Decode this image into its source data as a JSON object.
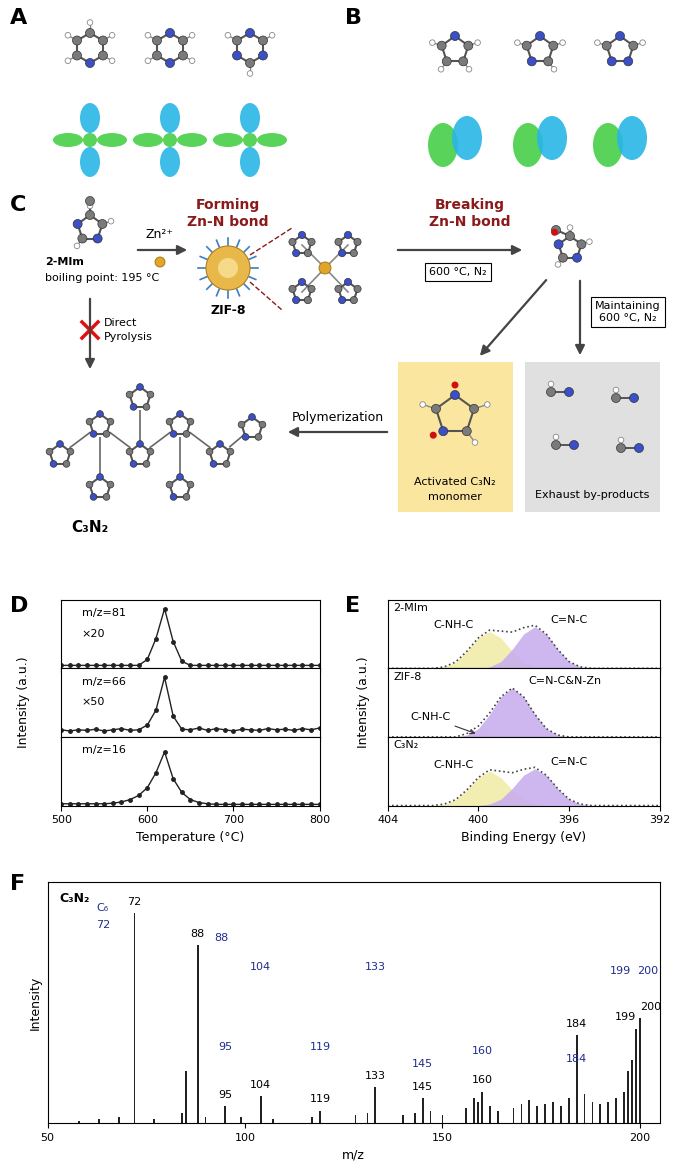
{
  "panel_labels": [
    "A",
    "B",
    "C",
    "D",
    "E",
    "F"
  ],
  "diagram": {
    "precursor": {
      "name": "2-MIm",
      "note": "boiling point: 195 °C"
    },
    "metal": "Zn²⁺",
    "step1": [
      "Forming",
      "Zn-N bond"
    ],
    "framework": "ZIF-8",
    "step2": [
      "Breaking",
      "Zn-N bond"
    ],
    "condition": "600 °C, N₂",
    "step3": [
      "Maintaining",
      "600 °C, N₂"
    ],
    "blocked_route": [
      "Direct",
      "Pyrolysis"
    ],
    "monomer": [
      "Activated C₃N₂",
      "monomer"
    ],
    "byproducts": "Exhaust by-products",
    "step4": "Polymerization",
    "product": "C₃N₂"
  },
  "chart_data": [
    {
      "type": "line",
      "xlabel": "Temperature (°C)",
      "ylabel": "Intensity (a.u.)",
      "x": [
        500,
        510,
        520,
        530,
        540,
        550,
        560,
        570,
        580,
        590,
        600,
        610,
        620,
        630,
        640,
        650,
        660,
        670,
        680,
        690,
        700,
        710,
        720,
        730,
        740,
        750,
        760,
        770,
        780,
        790,
        800
      ],
      "xlim": [
        500,
        800
      ],
      "xticks": [
        500,
        600,
        700,
        800
      ],
      "ylim": [
        0,
        1.15
      ],
      "tick_labels": "x",
      "grid": false,
      "marker": "circle",
      "line_style": "solid",
      "series": [
        {
          "name": "m/z=81",
          "annotation": "×20",
          "color": "#222222",
          "values": [
            0.05,
            0.05,
            0.05,
            0.05,
            0.05,
            0.05,
            0.05,
            0.05,
            0.05,
            0.05,
            0.15,
            0.5,
            1.0,
            0.45,
            0.12,
            0.05,
            0.05,
            0.05,
            0.05,
            0.05,
            0.05,
            0.05,
            0.05,
            0.05,
            0.05,
            0.05,
            0.05,
            0.05,
            0.05,
            0.05,
            0.05
          ]
        },
        {
          "name": "m/z=66",
          "annotation": "×50",
          "color": "#222222",
          "values": [
            0.12,
            0.1,
            0.12,
            0.11,
            0.13,
            0.1,
            0.12,
            0.14,
            0.11,
            0.12,
            0.2,
            0.45,
            1.0,
            0.35,
            0.13,
            0.12,
            0.15,
            0.11,
            0.14,
            0.12,
            0.1,
            0.13,
            0.12,
            0.11,
            0.14,
            0.12,
            0.13,
            0.11,
            0.14,
            0.12,
            0.15
          ]
        },
        {
          "name": "m/z=16",
          "color": "#222222",
          "values": [
            0.03,
            0.03,
            0.03,
            0.03,
            0.03,
            0.03,
            0.04,
            0.06,
            0.1,
            0.17,
            0.3,
            0.55,
            0.9,
            0.45,
            0.22,
            0.1,
            0.05,
            0.03,
            0.02,
            0.02,
            0.02,
            0.02,
            0.02,
            0.02,
            0.02,
            0.02,
            0.02,
            0.02,
            0.02,
            0.02,
            0.02
          ]
        }
      ]
    },
    {
      "type": "area",
      "xlabel": "Binding Energy (eV)",
      "ylabel": "Intensity (a.u.)",
      "x": [
        404,
        403.5,
        403,
        402.5,
        402,
        401.5,
        401,
        400.5,
        400,
        399.5,
        399,
        398.5,
        398,
        397.5,
        397,
        396.5,
        396,
        395.5,
        395,
        394.5,
        394,
        393.5,
        393,
        392.5,
        392
      ],
      "xlim": [
        404,
        392
      ],
      "xticks": [
        404,
        400,
        396,
        392
      ],
      "ylim": [
        0,
        1.4
      ],
      "tick_labels": "x",
      "grid": false,
      "panels": [
        {
          "name": "2-MIm",
          "series": [
            {
              "name": "C-NH-C",
              "color": "#f1eca8",
              "values": [
                0,
                0,
                0,
                0,
                0,
                0.03,
                0.13,
                0.35,
                0.62,
                0.75,
                0.62,
                0.35,
                0.13,
                0.03,
                0,
                0,
                0,
                0,
                0,
                0,
                0,
                0,
                0,
                0,
                0
              ]
            },
            {
              "name": "C=N-C",
              "color": "#c9aeee",
              "values": [
                0,
                0,
                0,
                0,
                0,
                0,
                0,
                0,
                0,
                0.03,
                0.14,
                0.39,
                0.7,
                0.85,
                0.7,
                0.39,
                0.14,
                0.03,
                0,
                0,
                0,
                0,
                0,
                0,
                0
              ]
            }
          ]
        },
        {
          "name": "ZIF-8",
          "series": [
            {
              "name": "C-NH-C",
              "color": "#f1eca8",
              "values": [
                0,
                0,
                0,
                0,
                0,
                0,
                0,
                0.03,
                0.05,
                0.03,
                0,
                0,
                0,
                0,
                0,
                0,
                0,
                0,
                0,
                0,
                0,
                0,
                0,
                0,
                0
              ]
            },
            {
              "name": "C=N-C&N-Zn",
              "color": "#c9aeee",
              "values": [
                0,
                0,
                0,
                0,
                0,
                0,
                0,
                0.04,
                0.17,
                0.46,
                0.82,
                1.0,
                0.82,
                0.46,
                0.17,
                0.04,
                0,
                0,
                0,
                0,
                0,
                0,
                0,
                0,
                0
              ]
            }
          ]
        },
        {
          "name": "C₃N₂",
          "series": [
            {
              "name": "C-NH-C",
              "color": "#f1eca8",
              "values": [
                0,
                0,
                0,
                0,
                0,
                0.03,
                0.12,
                0.32,
                0.57,
                0.7,
                0.57,
                0.32,
                0.12,
                0.03,
                0,
                0,
                0,
                0,
                0,
                0,
                0,
                0,
                0,
                0,
                0
              ]
            },
            {
              "name": "C=N-C",
              "color": "#c9aeee",
              "values": [
                0,
                0,
                0,
                0,
                0,
                0,
                0,
                0,
                0,
                0.03,
                0.13,
                0.35,
                0.62,
                0.75,
                0.62,
                0.35,
                0.13,
                0.03,
                0,
                0,
                0,
                0,
                0,
                0,
                0
              ]
            }
          ]
        }
      ]
    },
    {
      "type": "bar",
      "title": "C₃N₂",
      "xlabel": "m/z",
      "ylabel": "Intensity",
      "xlim": [
        50,
        205
      ],
      "xticks": [
        50,
        100,
        150,
        200
      ],
      "ylim": [
        0,
        1.15
      ],
      "tick_labels": "x",
      "grid": false,
      "data_labels": true,
      "color": "#222222",
      "peaks": {
        "x": [
          72,
          88,
          95,
          104,
          119,
          133,
          145,
          160,
          184,
          199,
          200
        ],
        "values": [
          1.0,
          0.85,
          0.08,
          0.13,
          0.06,
          0.17,
          0.12,
          0.15,
          0.42,
          0.45,
          0.5
        ]
      },
      "minor_peaks": {
        "x": [
          58,
          63,
          68,
          77,
          84,
          85,
          90,
          99,
          107,
          117,
          128,
          131,
          140,
          143,
          147,
          150,
          156,
          158,
          159,
          162,
          164,
          168,
          170,
          172,
          174,
          176,
          178,
          180,
          182,
          186,
          188,
          190,
          192,
          194,
          196,
          197,
          198
        ],
        "values": [
          0.01,
          0.02,
          0.03,
          0.02,
          0.05,
          0.25,
          0.03,
          0.03,
          0.02,
          0.03,
          0.04,
          0.05,
          0.04,
          0.05,
          0.06,
          0.04,
          0.07,
          0.12,
          0.1,
          0.08,
          0.06,
          0.07,
          0.09,
          0.11,
          0.08,
          0.09,
          0.1,
          0.08,
          0.12,
          0.14,
          0.1,
          0.09,
          0.1,
          0.12,
          0.15,
          0.25,
          0.3
        ]
      },
      "structure_labels": [
        "C₆",
        "72",
        "88",
        "104",
        "133",
        "199",
        "200",
        "95",
        "119",
        "160",
        "184",
        "145"
      ]
    }
  ]
}
